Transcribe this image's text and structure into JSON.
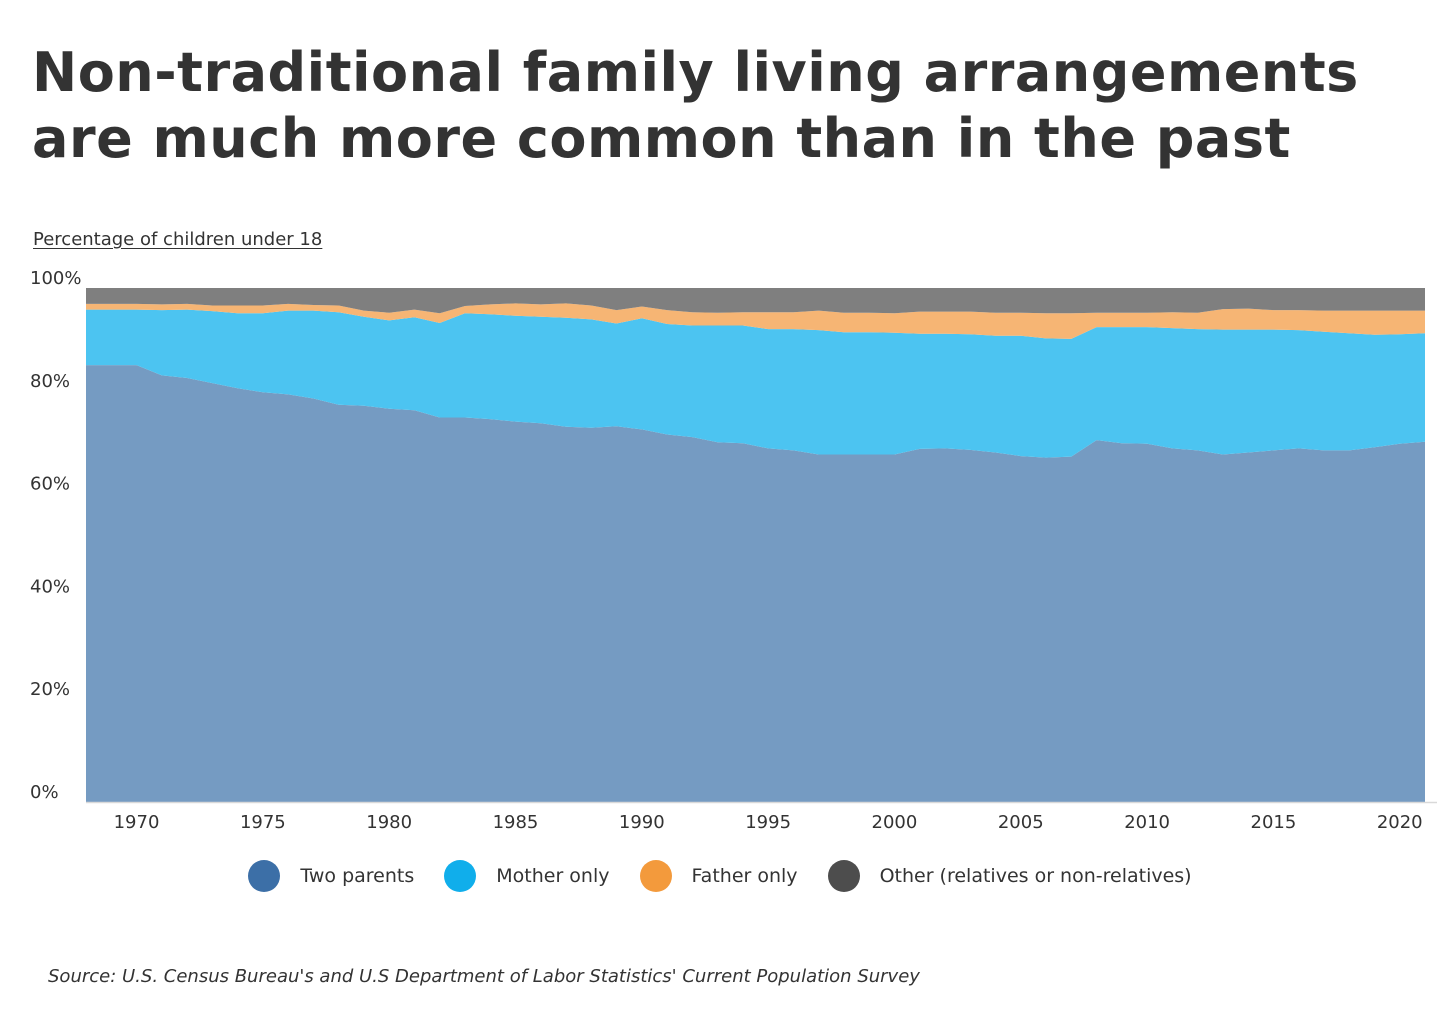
{
  "title": "Non-traditional family living arrangements are much more common than in the past",
  "subtitle": "Percentage of children under 18",
  "source": "Source:  U.S. Census Bureau's and U.S Department of Labor Statistics' Current Population Survey",
  "chart_data": {
    "type": "area",
    "stacked": true,
    "x": [
      1968,
      1969,
      1970,
      1971,
      1972,
      1973,
      1974,
      1975,
      1976,
      1977,
      1978,
      1979,
      1980,
      1981,
      1982,
      1983,
      1984,
      1985,
      1986,
      1987,
      1988,
      1989,
      1990,
      1991,
      1992,
      1993,
      1994,
      1995,
      1996,
      1997,
      1998,
      1999,
      2000,
      2001,
      2002,
      2003,
      2004,
      2005,
      2006,
      2007,
      2008,
      2009,
      2010,
      2011,
      2012,
      2013,
      2014,
      2015,
      2016,
      2017,
      2018,
      2019,
      2020,
      2021
    ],
    "xticks": [
      "1970",
      "1975",
      "1980",
      "1985",
      "1990",
      "1995",
      "2000",
      "2005",
      "2010",
      "2015",
      "2020"
    ],
    "xtick_values": [
      1970,
      1975,
      1980,
      1985,
      1990,
      1995,
      2000,
      2005,
      2010,
      2015,
      2020
    ],
    "yticks": [
      "0%",
      "20%",
      "40%",
      "60%",
      "80%",
      "100%"
    ],
    "ytick_values": [
      0,
      20,
      40,
      60,
      80,
      100
    ],
    "ylim": [
      0,
      100
    ],
    "xlim": [
      1968,
      2021
    ],
    "series": [
      {
        "name": "Two parents",
        "color": "#759bc2",
        "values": [
          85,
          85,
          85,
          83,
          82.5,
          81.5,
          80.5,
          79.7,
          79.3,
          78.5,
          77.3,
          77.1,
          76.5,
          76.2,
          74.8,
          74.8,
          74.5,
          74,
          73.7,
          73,
          72.8,
          73.1,
          72.5,
          71.5,
          71,
          70,
          69.8,
          68.8,
          68.4,
          67.6,
          67.6,
          67.6,
          67.6,
          68.7,
          68.8,
          68.5,
          68,
          67.3,
          67,
          67.2,
          70.4,
          69.8,
          69.7,
          68.8,
          68.4,
          67.6,
          68,
          68.4,
          68.8,
          68.4,
          68.4,
          69,
          69.7,
          70.1
        ]
      },
      {
        "name": "Mother only",
        "color": "#4cc4f1",
        "values": [
          10.8,
          10.8,
          10.8,
          12.7,
          13.3,
          14,
          14.6,
          15.4,
          16.3,
          17.1,
          18,
          17.3,
          17.2,
          18.1,
          18.4,
          20.3,
          20.4,
          20.6,
          20.7,
          21.2,
          21.1,
          20,
          21.6,
          21.5,
          21.7,
          22.7,
          22.9,
          23.2,
          23.6,
          24.2,
          23.8,
          23.8,
          23.7,
          22.4,
          22.3,
          22.5,
          22.7,
          23.4,
          23.2,
          22.9,
          22,
          22.6,
          22.7,
          23.4,
          23.6,
          24.3,
          23.9,
          23.5,
          23,
          23.1,
          22.8,
          21.9,
          21.3,
          21.1
        ]
      },
      {
        "name": "Father only",
        "color": "#f6b574",
        "values": [
          1.1,
          1.1,
          1.1,
          1.1,
          1.1,
          1.1,
          1.5,
          1.5,
          1.3,
          1.1,
          1.3,
          1.2,
          1.5,
          1.5,
          1.9,
          1.4,
          1.9,
          2.4,
          2.4,
          2.8,
          2.7,
          2.6,
          2.3,
          2.7,
          2.6,
          2.5,
          2.6,
          3.3,
          3.3,
          3.8,
          3.8,
          3.8,
          3.8,
          4.3,
          4.3,
          4.4,
          4.5,
          4.5,
          4.9,
          5,
          2.8,
          2.8,
          2.8,
          3.1,
          3.2,
          4,
          4.1,
          3.8,
          3.9,
          4.1,
          4.4,
          4.7,
          4.6,
          4.4
        ]
      },
      {
        "name": "Other (relatives or non-relatives)",
        "color": "#7f7f7f",
        "values": [
          3.1,
          3.1,
          3.1,
          3.2,
          3.1,
          3.4,
          3.4,
          3.4,
          3.1,
          3.3,
          3.4,
          4.4,
          4.8,
          4.2,
          4.9,
          3.5,
          3.2,
          3,
          3.2,
          3,
          3.4,
          4.3,
          3.6,
          4.3,
          4.7,
          4.8,
          4.7,
          4.7,
          4.7,
          4.4,
          4.8,
          4.8,
          4.9,
          4.6,
          4.6,
          4.6,
          4.8,
          4.8,
          4.9,
          4.9,
          4.8,
          4.8,
          4.8,
          4.7,
          4.8,
          4.1,
          4,
          4.3,
          4.3,
          4.4,
          4.4,
          4.4,
          4.4,
          4.4
        ]
      }
    ],
    "legend_position": "bottom-center",
    "grid": false
  },
  "legend": [
    {
      "label": "Two parents",
      "color": "#3c6fa7"
    },
    {
      "label": "Mother only",
      "color": "#10aeeb"
    },
    {
      "label": "Father only",
      "color": "#f39a3c"
    },
    {
      "label": "Other (relatives or non-relatives)",
      "color": "#4d4d4d"
    }
  ]
}
